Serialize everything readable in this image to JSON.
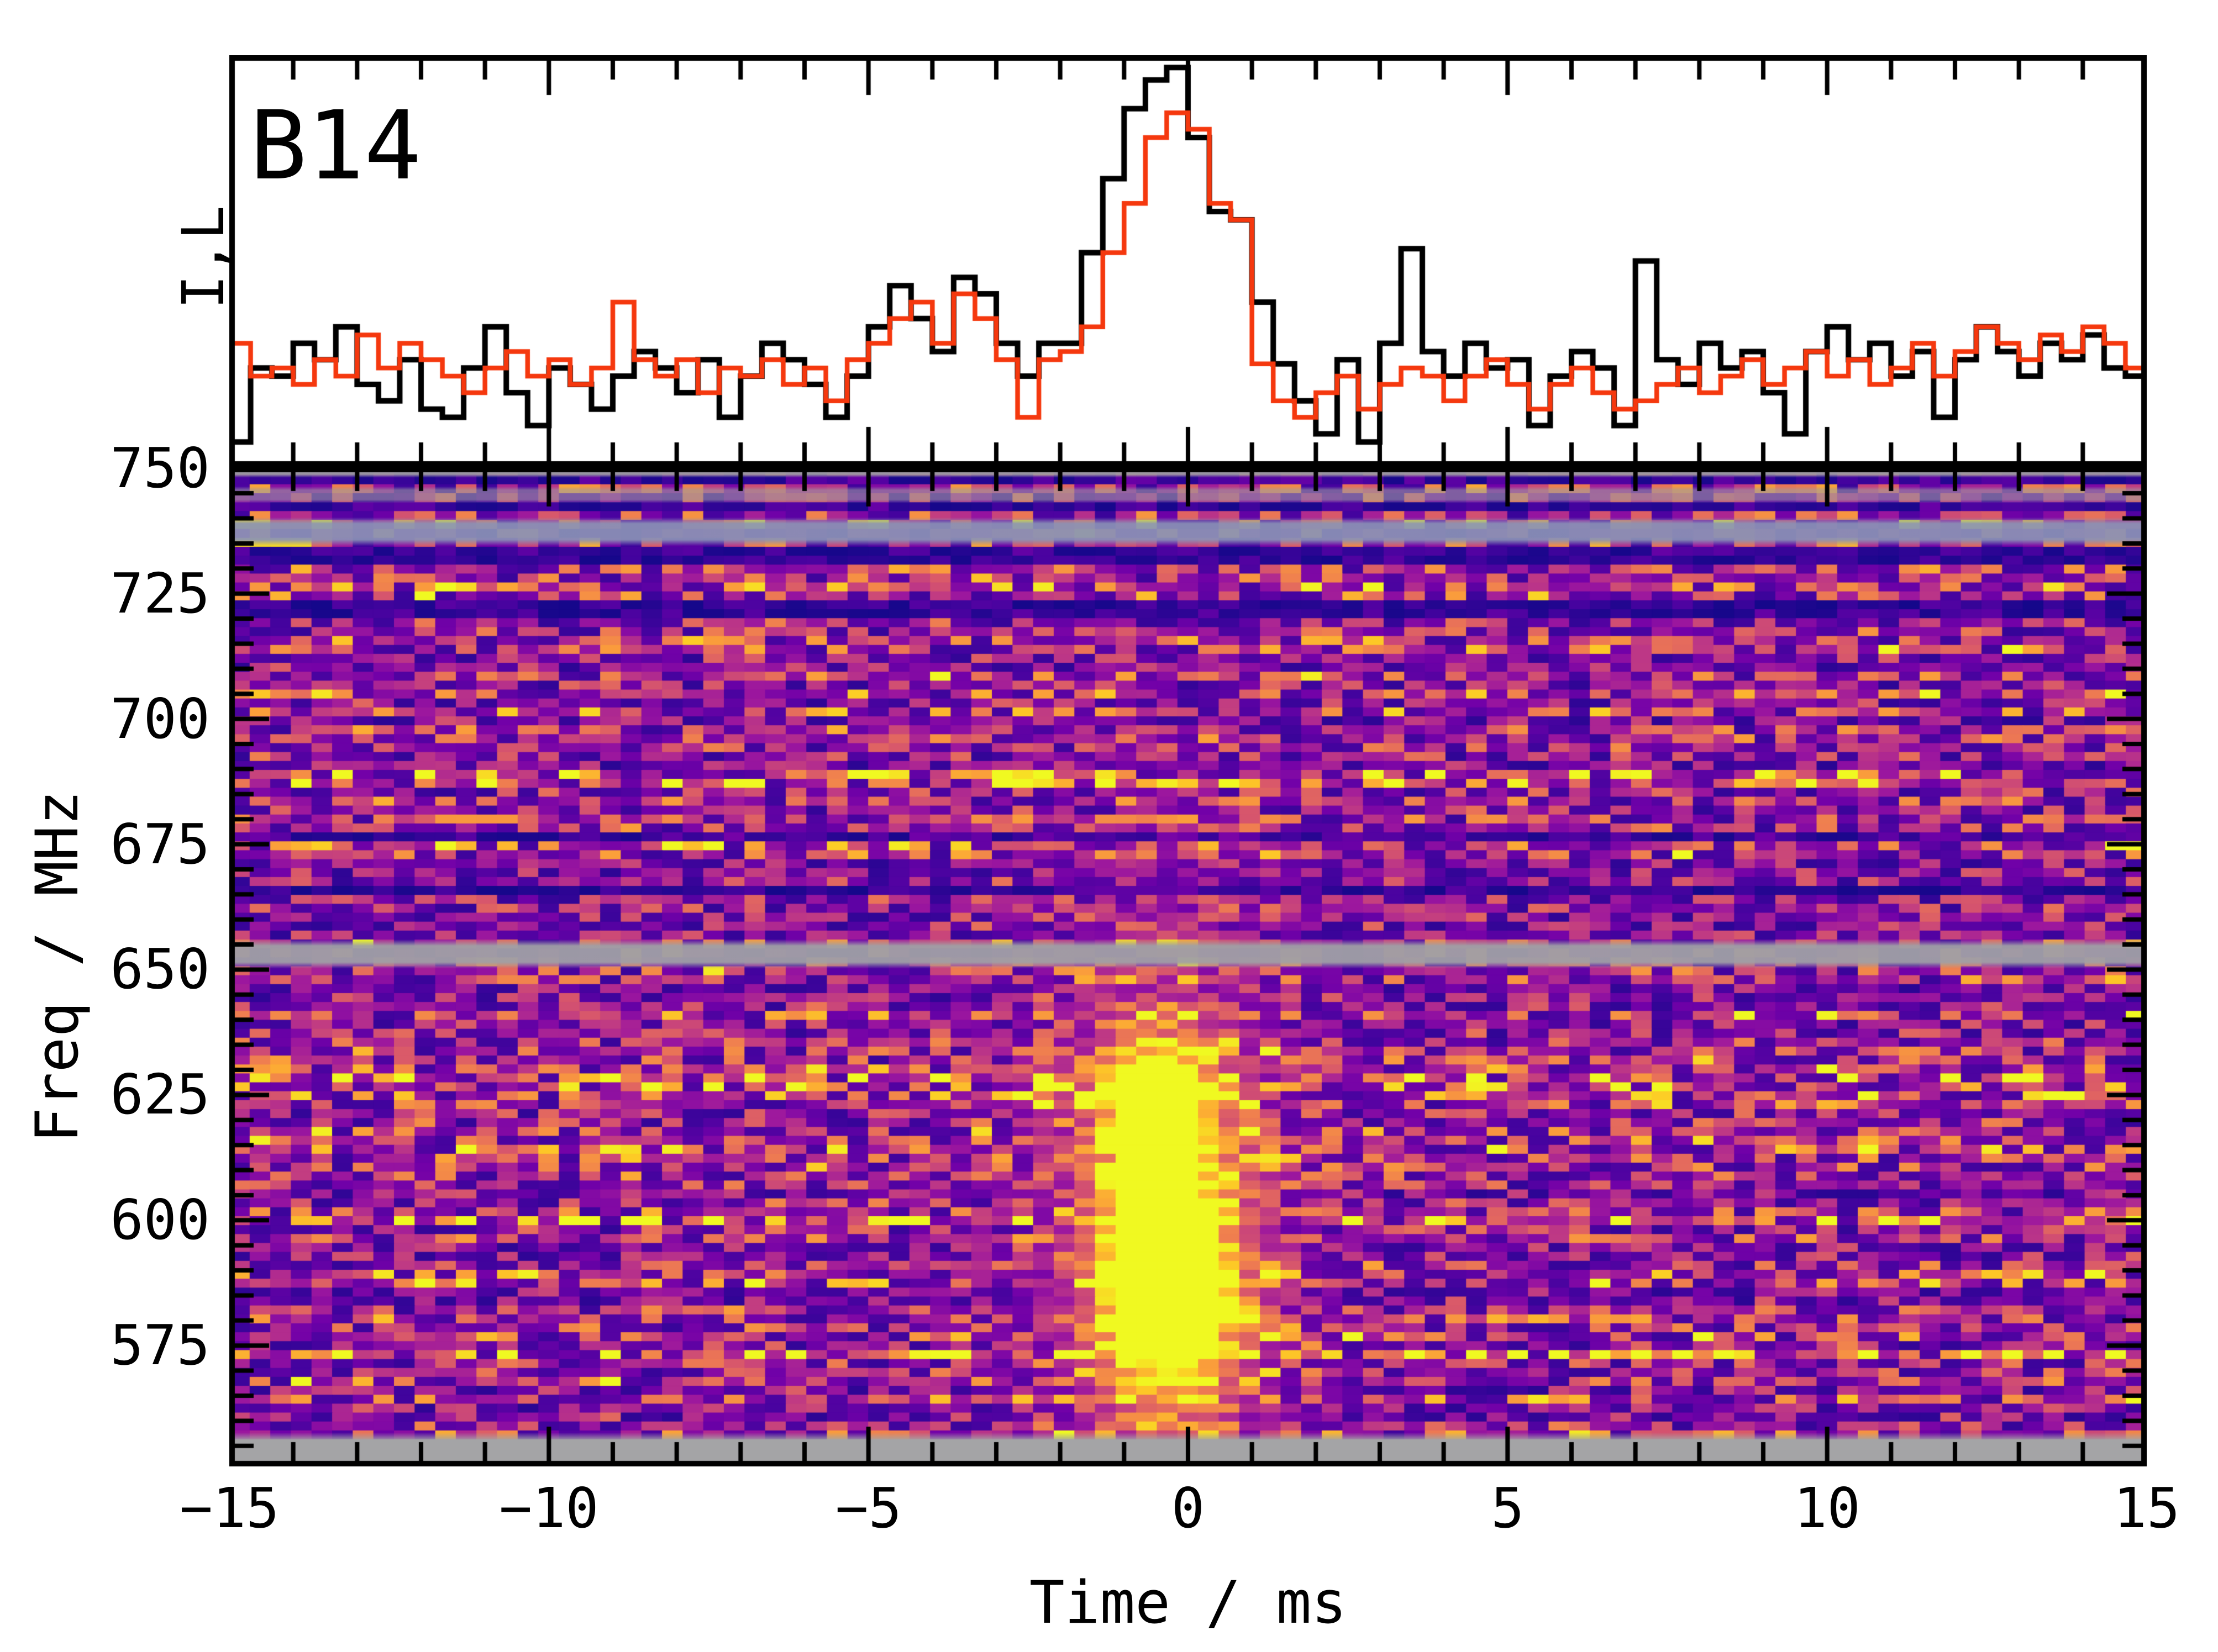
{
  "title": "B14",
  "colors": {
    "background": "#ffffff",
    "axis": "#000000",
    "black_line": "#000000",
    "red_line": "#f5380e",
    "mask_gray": "#9f9fa4",
    "mask_steel": "#8a93b6"
  },
  "top_panel": {
    "ylabel": "I,L"
  },
  "bottom_panel": {
    "ylabel": "Freq / MHz",
    "xlabel": "Time / ms",
    "ytick_labels": [
      "750",
      "725",
      "700",
      "675",
      "650",
      "625",
      "600",
      "575"
    ],
    "ytick_values": [
      750,
      725,
      700,
      675,
      650,
      625,
      600,
      575
    ],
    "xtick_labels": [
      "−15",
      "−10",
      "−5",
      "0",
      "5",
      "10",
      "15"
    ],
    "xtick_values": [
      -15,
      -10,
      -5,
      0,
      5,
      10,
      15
    ]
  },
  "chart_data": [
    {
      "type": "line",
      "subtype": "step-histogram",
      "title": "B14",
      "ylabel": "I,L",
      "xlabel": "Time / ms",
      "x_range": [
        -15,
        15
      ],
      "n_bins": 90,
      "ylim": [
        0,
        1
      ],
      "grid": false,
      "legend": "none",
      "series": [
        {
          "name": "I",
          "color": "#000000",
          "values": [
            0.06,
            0.24,
            0.22,
            0.3,
            0.26,
            0.34,
            0.2,
            0.16,
            0.26,
            0.14,
            0.12,
            0.24,
            0.34,
            0.18,
            0.1,
            0.24,
            0.2,
            0.14,
            0.22,
            0.28,
            0.24,
            0.18,
            0.26,
            0.12,
            0.22,
            0.3,
            0.26,
            0.2,
            0.12,
            0.22,
            0.34,
            0.44,
            0.36,
            0.28,
            0.46,
            0.42,
            0.3,
            0.22,
            0.3,
            0.3,
            0.52,
            0.7,
            0.87,
            0.94,
            0.97,
            0.8,
            0.62,
            0.6,
            0.4,
            0.25,
            0.16,
            0.08,
            0.26,
            0.06,
            0.3,
            0.53,
            0.28,
            0.22,
            0.3,
            0.24,
            0.26,
            0.1,
            0.22,
            0.28,
            0.24,
            0.1,
            0.5,
            0.26,
            0.2,
            0.3,
            0.24,
            0.28,
            0.18,
            0.08,
            0.28,
            0.34,
            0.26,
            0.3,
            0.22,
            0.28,
            0.12,
            0.26,
            0.34,
            0.28,
            0.22,
            0.3,
            0.26,
            0.32,
            0.24,
            0.22
          ]
        },
        {
          "name": "L",
          "color": "#f5380e",
          "values": [
            0.3,
            0.22,
            0.24,
            0.2,
            0.26,
            0.22,
            0.32,
            0.24,
            0.3,
            0.26,
            0.22,
            0.18,
            0.24,
            0.28,
            0.22,
            0.26,
            0.2,
            0.24,
            0.4,
            0.26,
            0.22,
            0.26,
            0.18,
            0.24,
            0.22,
            0.26,
            0.2,
            0.24,
            0.16,
            0.26,
            0.3,
            0.36,
            0.4,
            0.3,
            0.42,
            0.36,
            0.26,
            0.12,
            0.26,
            0.28,
            0.34,
            0.52,
            0.64,
            0.8,
            0.86,
            0.82,
            0.64,
            0.6,
            0.25,
            0.16,
            0.12,
            0.18,
            0.22,
            0.14,
            0.2,
            0.24,
            0.22,
            0.16,
            0.22,
            0.26,
            0.2,
            0.14,
            0.2,
            0.24,
            0.18,
            0.14,
            0.16,
            0.2,
            0.24,
            0.18,
            0.22,
            0.26,
            0.2,
            0.24,
            0.28,
            0.22,
            0.26,
            0.2,
            0.24,
            0.3,
            0.22,
            0.28,
            0.34,
            0.3,
            0.26,
            0.32,
            0.28,
            0.34,
            0.3,
            0.24
          ]
        }
      ]
    },
    {
      "type": "heatmap",
      "xlabel": "Time / ms",
      "ylabel": "Freq / MHz",
      "x_range": [
        -15,
        15
      ],
      "y_range": [
        550.9,
        750.3
      ],
      "n_time": 93,
      "n_freq": 112,
      "colormap": "plasma",
      "noise_seed": 1337,
      "noise": {
        "floor": 0.1,
        "scale": 0.78,
        "shape": 1.45,
        "sparkle_prob": 0.016,
        "row_gain_min": 0.62,
        "row_gain_span": 0.62
      },
      "burst_components": [
        {
          "t0": -0.4,
          "sigma_t": 0.8,
          "f0": 601,
          "sigma_f": 24,
          "amp": 1.0
        },
        {
          "t0": -0.5,
          "sigma_t": 0.7,
          "f0": 627,
          "sigma_f": 6,
          "amp": 0.55
        },
        {
          "t0": -0.2,
          "sigma_t": 0.9,
          "f0": 580,
          "sigma_f": 14,
          "amp": 0.5
        },
        {
          "t0": -0.4,
          "sigma_t": 1.4,
          "f0": 600,
          "sigma_f": 45,
          "amp": 0.25
        }
      ],
      "dark_rows": [
        747.8,
        742.5,
        734.2,
        732.4,
        723.0,
        721.2,
        676.5,
        666.0
      ],
      "bright_rows": [
        738.6,
        688.5,
        686.8,
        628.0,
        626.4,
        600.5,
        599.0,
        572.8
      ],
      "bright_segments": [
        {
          "f": 735.7,
          "t0": -15,
          "t1": -13.6,
          "v": 0.96
        }
      ],
      "masks": [
        {
          "f0": 749.0,
          "f1": 750.3,
          "color": "#9c9ca1",
          "soft": 8,
          "alpha": 0.95
        },
        {
          "f0": 744.0,
          "f1": 745.4,
          "color": "#9c9ca1",
          "soft": 9,
          "alpha": 0.6
        },
        {
          "f0": 735.8,
          "f1": 738.9,
          "color": "#8a93b6",
          "soft": 12,
          "alpha": 0.92
        },
        {
          "f0": 651.5,
          "f1": 654.7,
          "color": "#a0a0a6",
          "soft": 12,
          "alpha": 0.95
        },
        {
          "f0": 550.9,
          "f1": 556.7,
          "color": "#a4a4a6",
          "soft": 9,
          "alpha": 1.0
        }
      ],
      "colormap_stops": [
        [
          0.0,
          "#0d0887"
        ],
        [
          0.125,
          "#46039f"
        ],
        [
          0.25,
          "#7201a8"
        ],
        [
          0.375,
          "#9c179e"
        ],
        [
          0.5,
          "#bd3786"
        ],
        [
          0.625,
          "#d8576b"
        ],
        [
          0.75,
          "#ed7953"
        ],
        [
          0.875,
          "#fb9f3a"
        ],
        [
          0.9375,
          "#fdc926"
        ],
        [
          1.0,
          "#f0f921"
        ]
      ]
    }
  ]
}
